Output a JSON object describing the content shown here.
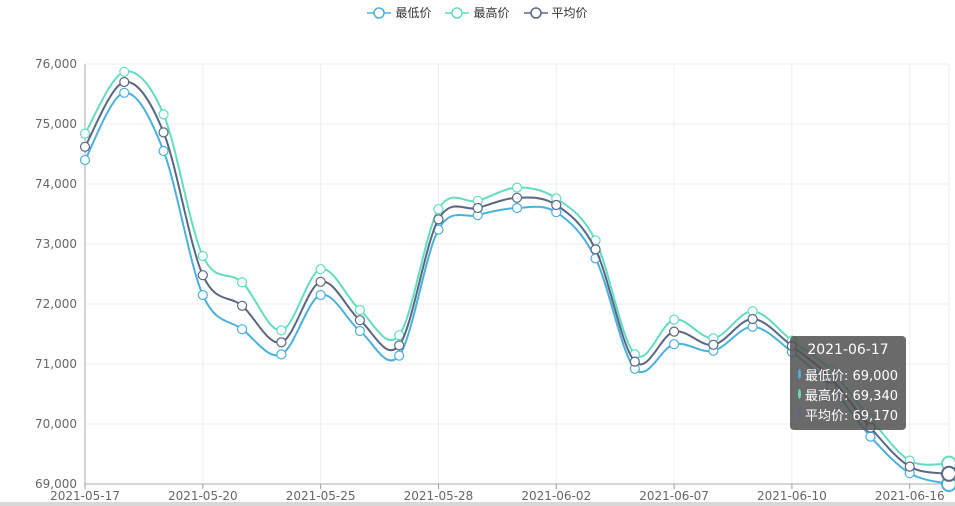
{
  "chart_data": {
    "type": "line",
    "title": "",
    "xlabel": "",
    "ylabel": "",
    "ylim": [
      69000,
      76000
    ],
    "yticks": [
      69000,
      70000,
      71000,
      72000,
      73000,
      74000,
      75000,
      76000
    ],
    "ytick_labels": [
      "69,000",
      "70,000",
      "71,000",
      "72,000",
      "73,000",
      "74,000",
      "75,000",
      "76,000"
    ],
    "x": [
      "2021-05-17",
      "2021-05-18",
      "2021-05-19",
      "2021-05-20",
      "2021-05-21",
      "2021-05-24",
      "2021-05-25",
      "2021-05-26",
      "2021-05-27",
      "2021-05-28",
      "2021-05-31",
      "2021-06-01",
      "2021-06-02",
      "2021-06-03",
      "2021-06-04",
      "2021-06-07",
      "2021-06-08",
      "2021-06-09",
      "2021-06-10",
      "2021-06-11",
      "2021-06-15",
      "2021-06-16",
      "2021-06-17"
    ],
    "xtick_labels": [
      "2021-05-17",
      "2021-05-20",
      "2021-05-25",
      "2021-05-28",
      "2021-06-02",
      "2021-06-07",
      "2021-06-10",
      "2021-06-16"
    ],
    "xtick_indices": [
      0,
      3,
      6,
      9,
      12,
      15,
      18,
      21
    ],
    "series": [
      {
        "name": "最低价",
        "color": "#4ab0de",
        "values": [
          74400,
          75520,
          74550,
          72150,
          71580,
          71160,
          72150,
          71550,
          71140,
          73240,
          73480,
          73600,
          73530,
          72760,
          70920,
          71330,
          71220,
          71620,
          71200,
          70620,
          69790,
          69180,
          69000
        ]
      },
      {
        "name": "最高价",
        "color": "#62dcbf",
        "values": [
          74840,
          75870,
          75160,
          72800,
          72360,
          71560,
          72580,
          71900,
          71480,
          73580,
          73720,
          73940,
          73760,
          73060,
          71160,
          71740,
          71430,
          71880,
          71390,
          70900,
          70090,
          69390,
          69340
        ]
      },
      {
        "name": "平均价",
        "color": "#5b6683",
        "values": [
          74620,
          75700,
          74860,
          72480,
          71970,
          71360,
          72370,
          71730,
          71310,
          73410,
          73600,
          73770,
          73650,
          72910,
          71040,
          71540,
          71320,
          71750,
          71300,
          70760,
          69940,
          69290,
          69170
        ]
      }
    ],
    "grid": true,
    "legend_position": "top-center"
  },
  "tooltip": {
    "date": "2021-06-17",
    "rows": [
      {
        "label": "最低价: 69,000",
        "color": "#4ab0de"
      },
      {
        "label": "最高价: 69,340",
        "color": "#62dcbf"
      },
      {
        "label": "平均价: 69,170",
        "color": "#5b6683"
      }
    ]
  }
}
